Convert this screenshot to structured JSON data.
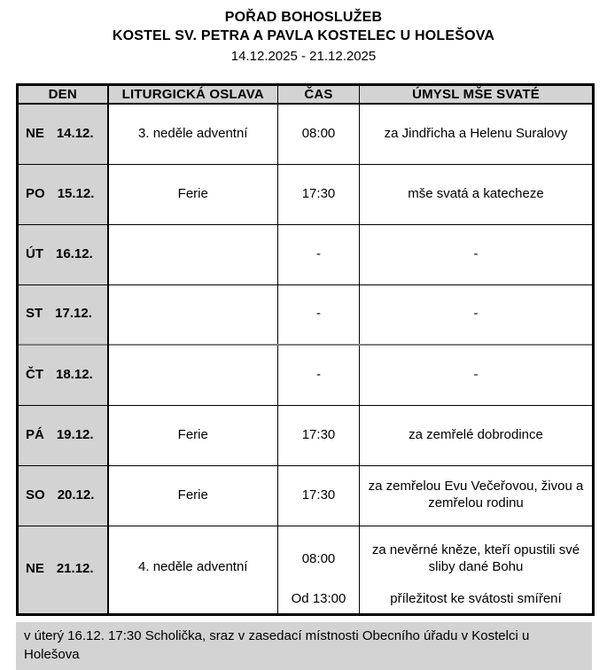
{
  "header": {
    "title": "POŘAD BOHOSLUŽEB",
    "subtitle": "KOSTEL SV. PETRA A PAVLA KOSTELEC U HOLEŠOVA",
    "date_range": "14.12.2025 - 21.12.2025"
  },
  "table": {
    "headers": [
      "DEN",
      "LITURGICKÁ OSLAVA",
      "ČAS",
      "ÚMYSL MŠE SVATÉ"
    ],
    "rows": [
      {
        "day": "NE",
        "date": "14.12.",
        "celebration": "3. neděle adventní",
        "time": "08:00",
        "intention": "za Jindřicha a Helenu Suralovy"
      },
      {
        "day": "PO",
        "date": "15.12.",
        "celebration": "Ferie",
        "time": "17:30",
        "intention": "mše svatá a katecheze"
      },
      {
        "day": "ÚT",
        "date": "16.12.",
        "celebration": "",
        "time": "-",
        "intention": "-"
      },
      {
        "day": "ST",
        "date": "17.12.",
        "celebration": "",
        "time": "-",
        "intention": "-"
      },
      {
        "day": "ČT",
        "date": "18.12.",
        "celebration": "",
        "time": "-",
        "intention": "-"
      },
      {
        "day": "PÁ",
        "date": "19.12.",
        "celebration": "Ferie",
        "time": "17:30",
        "intention": "za zemřelé dobrodince"
      },
      {
        "day": "SO",
        "date": "20.12.",
        "celebration": "Ferie",
        "time": "17:30",
        "intention": "za zemřelou Evu Večeřovou, živou a zemřelou rodinu"
      },
      {
        "day": "NE",
        "date": "21.12.",
        "celebration": "4. neděle adventní",
        "entries": [
          {
            "time": "08:00",
            "intention": "za nevěrné kněze, kteří opustili své sliby dané Bohu"
          },
          {
            "time": "Od 13:00",
            "intention": "příležitost ke svátosti smíření"
          }
        ]
      }
    ]
  },
  "note": "v úterý 16.12. 17:30 Scholička, sraz v zasedací místnosti Obecního úřadu v Kostelci u Holešova",
  "colors": {
    "cell_gray": "#d3d3d3",
    "border": "#000000",
    "page_break_line": "#7f7f7f"
  }
}
